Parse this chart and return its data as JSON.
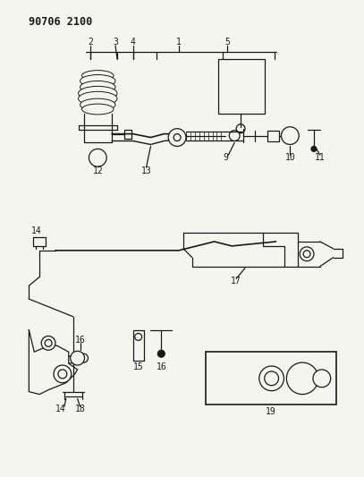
{
  "title": "90706 2100",
  "bg_color": "#f5f5f0",
  "line_color": "#1a1a1a",
  "fig_width": 4.07,
  "fig_height": 5.33,
  "dpi": 100
}
